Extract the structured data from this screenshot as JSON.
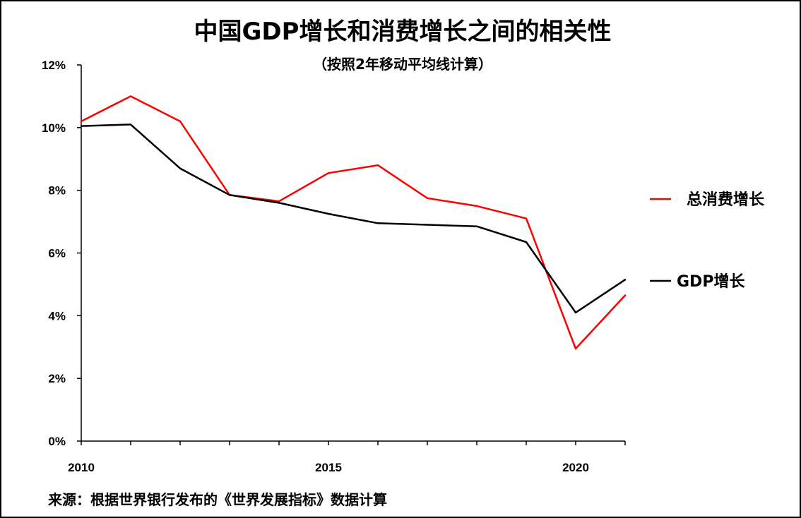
{
  "chart_data": {
    "type": "line",
    "title": "中国GDP增长和消费增长之间的相关性",
    "subtitle": "（按照2年移动平均线计算）",
    "xlabel": "",
    "ylabel": "",
    "x": [
      2010,
      2011,
      2012,
      2013,
      2014,
      2015,
      2016,
      2017,
      2018,
      2019,
      2020,
      2021
    ],
    "xlim": [
      2010,
      2021
    ],
    "ylim": [
      0,
      12
    ],
    "x_ticks": [
      "2010",
      "2015",
      "2020"
    ],
    "y_ticks": [
      "0%",
      "2%",
      "4%",
      "6%",
      "8%",
      "10%",
      "12%"
    ],
    "grid": false,
    "legend_position": "right",
    "series": [
      {
        "name": "总消费增长",
        "color": "#ff0000",
        "values": [
          10.2,
          11.0,
          10.2,
          7.85,
          7.65,
          8.55,
          8.8,
          7.75,
          7.5,
          7.1,
          2.95,
          4.65
        ]
      },
      {
        "name": "GDP增长",
        "color": "#000000",
        "values": [
          10.05,
          10.1,
          8.7,
          7.85,
          7.6,
          7.25,
          6.95,
          6.9,
          6.85,
          6.35,
          4.1,
          5.15
        ]
      }
    ]
  },
  "source": "来源：根据世界银行发布的《世界发展指标》数据计算"
}
